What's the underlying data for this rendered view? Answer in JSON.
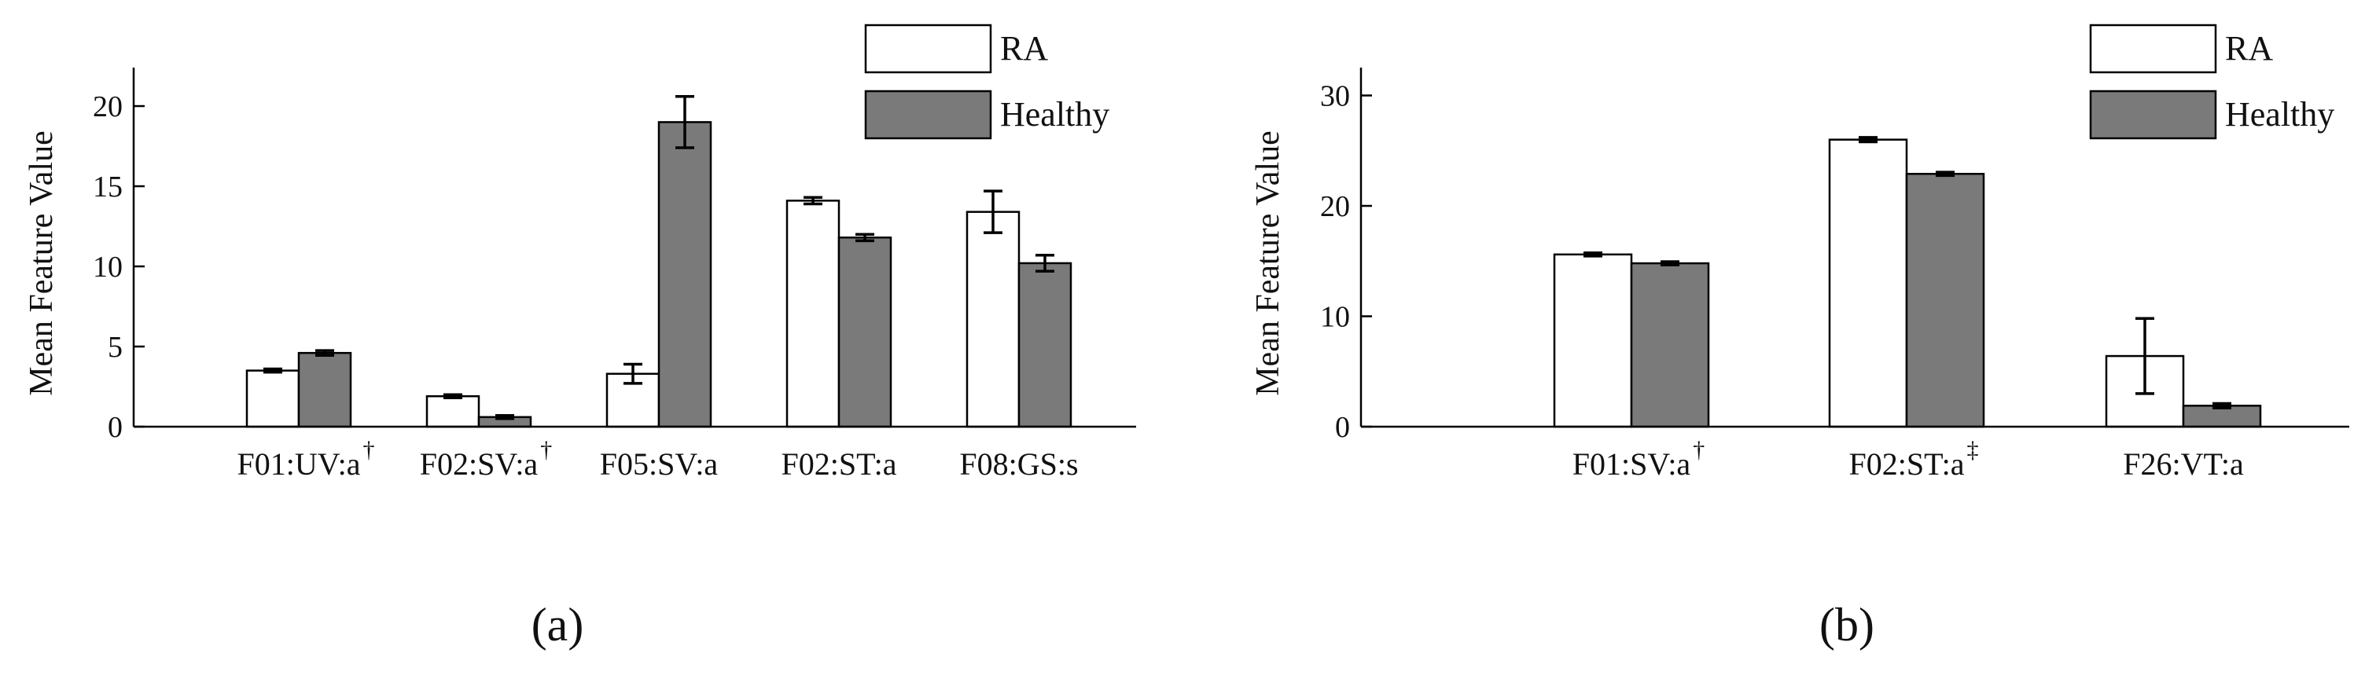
{
  "chart_data": [
    {
      "type": "bar",
      "panel": "(a)",
      "title": "",
      "xlabel": "",
      "ylabel": "Mean Feature Value",
      "ylim": [
        0,
        22.5
      ],
      "yticks": [
        "0",
        "5",
        "10",
        "15",
        "20"
      ],
      "categories": [
        "F01:UV:a",
        "F02:SV:a",
        "F05:SV:a",
        "F02:ST:a",
        "F08:GS:s"
      ],
      "category_marks": [
        "†",
        "†",
        "",
        "",
        ""
      ],
      "series": [
        {
          "name": "RA",
          "color": "#ffffff",
          "values": [
            3.5,
            1.9,
            3.3,
            14.1,
            13.4
          ],
          "errors": [
            0.1,
            0.1,
            0.6,
            0.2,
            1.3
          ]
        },
        {
          "name": "Healthy",
          "color": "#7a7a7a",
          "values": [
            4.6,
            0.6,
            19.0,
            11.8,
            10.2
          ],
          "errors": [
            0.15,
            0.1,
            1.6,
            0.2,
            0.5
          ]
        }
      ],
      "legend": [
        "RA",
        "Healthy"
      ],
      "legend_position": "top-right"
    },
    {
      "type": "bar",
      "panel": "(b)",
      "title": "",
      "xlabel": "",
      "ylabel": "Mean Feature Value",
      "ylim": [
        0,
        32.5
      ],
      "yticks": [
        "0",
        "10",
        "20",
        "30"
      ],
      "categories": [
        "F01:SV:a",
        "F02:ST:a",
        "F26:VT:a"
      ],
      "category_marks": [
        "†",
        "‡",
        ""
      ],
      "series": [
        {
          "name": "RA",
          "color": "#ffffff",
          "values": [
            15.6,
            26.0,
            6.4
          ],
          "errors": [
            0.15,
            0.2,
            3.4
          ]
        },
        {
          "name": "Healthy",
          "color": "#7a7a7a",
          "values": [
            14.8,
            22.9,
            1.9
          ],
          "errors": [
            0.15,
            0.15,
            0.2
          ]
        }
      ],
      "legend": [
        "RA",
        "Healthy"
      ],
      "legend_position": "top-right"
    }
  ]
}
